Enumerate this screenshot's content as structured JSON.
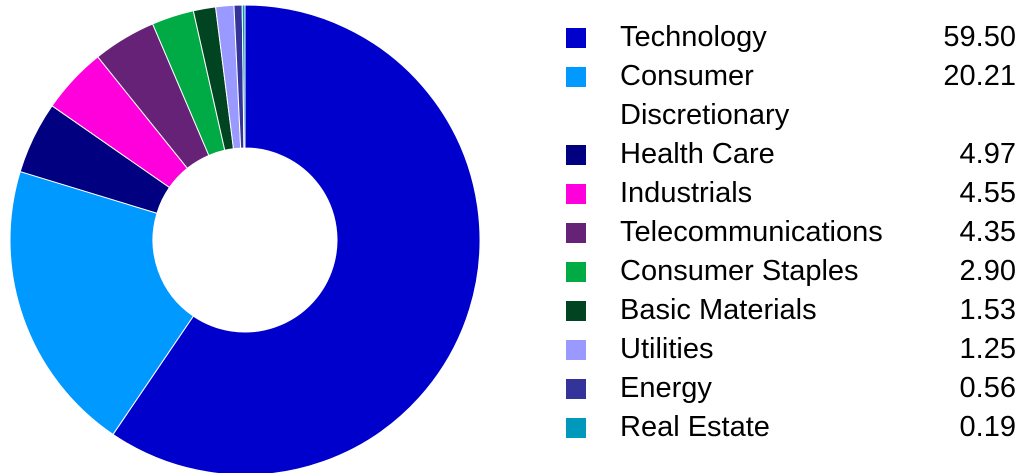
{
  "chart_data": {
    "type": "donut",
    "categories": [
      "Technology",
      "Consumer Discretionary",
      "Health Care",
      "Industrials",
      "Telecommunications",
      "Consumer Staples",
      "Basic Materials",
      "Utilities",
      "Energy",
      "Real Estate"
    ],
    "values": [
      59.5,
      20.21,
      4.97,
      4.55,
      4.35,
      2.9,
      1.53,
      1.25,
      0.56,
      0.19
    ],
    "value_labels": [
      "59.50",
      "20.21",
      "4.97",
      "4.55",
      "4.35",
      "2.90",
      "1.53",
      "1.25",
      "0.56",
      "0.19"
    ],
    "colors": [
      "#0000cc",
      "#0099ff",
      "#000080",
      "#ff00dd",
      "#662277",
      "#00aa44",
      "#004422",
      "#9999ff",
      "#333399",
      "#0099bb"
    ]
  }
}
